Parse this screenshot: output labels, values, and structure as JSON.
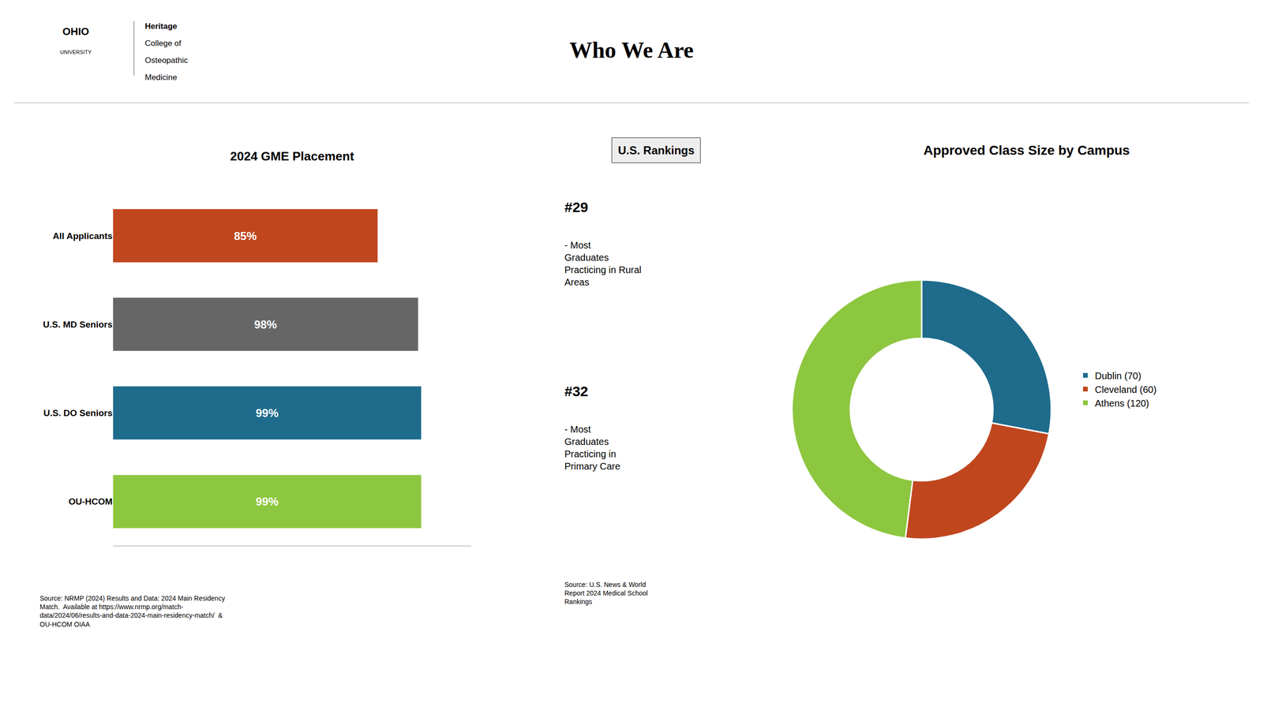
{
  "title": "Who We Are",
  "annotations": [
    "OHIO",
    "UNIVERSITY",
    "Heritage",
    "College of",
    "Osteopathic",
    "Medicine",
    "U.S. Rankings",
    "#29",
    "- Most\nGraduates\nPracticing in Rural\nAreas",
    "#32",
    "- Most\nGraduates\nPracticing in\nPrimary Care",
    "Source: U.S. News & World\nReport 2024 Medical School\nRankings"
  ],
  "chart_data": [
    {
      "type": "bar",
      "title": "2024 GME Placement",
      "orientation": "horizontal",
      "categories": [
        "OU-HCOM",
        "U.S. DO Seniors",
        "U.S. MD Seniors",
        "All Applicants"
      ],
      "values": [
        99,
        99,
        98,
        85
      ],
      "value_labels": [
        "99%",
        "99%",
        "98%",
        "85%"
      ],
      "data_labels": true,
      "colors": [
        "#8dc63f",
        "#1e6b8c",
        "#666666",
        "#c0461e"
      ],
      "xlim": [
        0,
        115
      ],
      "tick_labels": "y",
      "grid": false,
      "annotations": [
        "Source: NRMP (2024) Results and Data: 2024 Main Residency\nMatch.  Available at https://www.nrmp.org/match-\ndata/2024/06/results-and-data-2024-main-residency-match/  &\nOU-HCOM OIAA"
      ]
    },
    {
      "type": "pie",
      "title": "Approved Class Size by Campus",
      "categories": [
        "Dublin (70)",
        "Cleveland (60)",
        "Athens (120)"
      ],
      "values": [
        70,
        60,
        120
      ],
      "colors": [
        "#1e6b8c",
        "#c0461e",
        "#8dc63f"
      ],
      "legend": "right"
    }
  ]
}
